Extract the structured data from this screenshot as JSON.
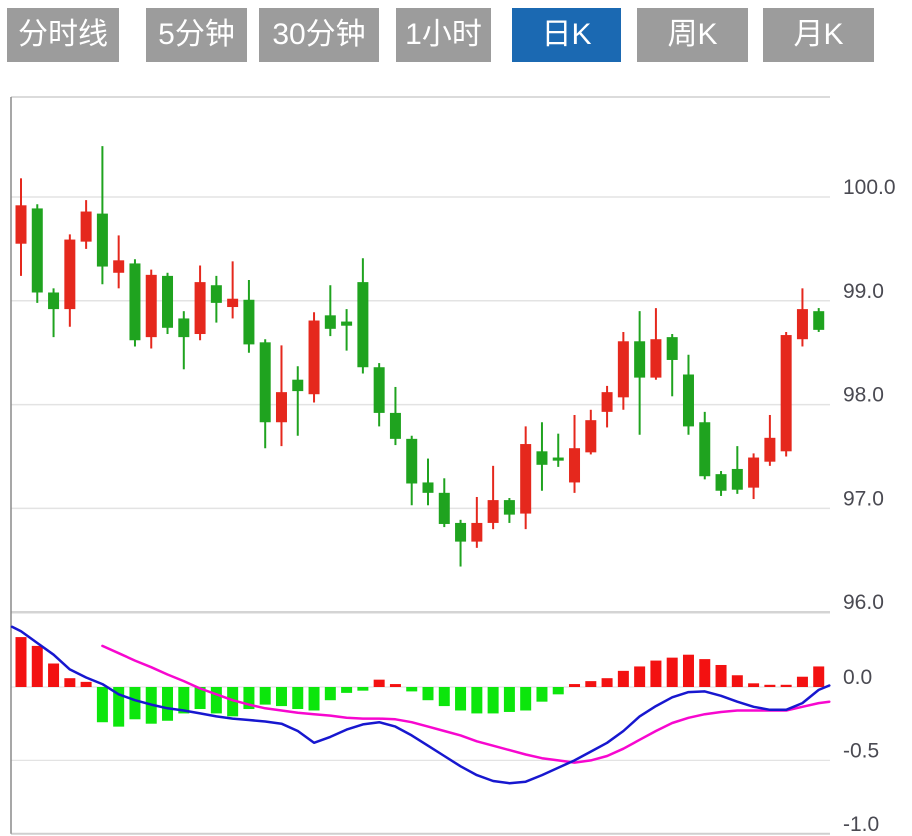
{
  "toolbar": {
    "tabs": [
      {
        "label": "分时线",
        "active": false
      },
      {
        "label": "5分钟",
        "active": false
      },
      {
        "label": "30分钟",
        "active": false
      },
      {
        "label": "1小时",
        "active": false
      },
      {
        "label": "日K",
        "active": true
      },
      {
        "label": "周K",
        "active": false
      },
      {
        "label": "月K",
        "active": false
      }
    ],
    "active_color": "#1b69b2",
    "inactive_color": "#9c9c9c"
  },
  "colors": {
    "candle_up": "#e5281d",
    "candle_down": "#1fa31f",
    "macd_up": "#f31111",
    "macd_down": "#0ce60c",
    "dif_line": "#1717cf",
    "dea_line": "#f707cf",
    "grid": "#e3e3e3",
    "panel_divider": "#d4d4d4",
    "frame": "#cfcfcf",
    "axis_line": "#8a8a8a",
    "tick_text": "#4a4a52"
  },
  "chart_data": {
    "type": "candlestick",
    "title": "",
    "panels": [
      "price",
      "macd"
    ],
    "legend": "none",
    "grid": true,
    "price_axis": {
      "side": "right",
      "range": [
        95.9,
        101.0
      ],
      "ticks": [
        {
          "label": "100.0",
          "value": 100.0
        },
        {
          "label": "99.0",
          "value": 99.0
        },
        {
          "label": "98.0",
          "value": 98.0
        },
        {
          "label": "97.0",
          "value": 97.0
        },
        {
          "label": "96.0",
          "value": 96.0
        }
      ]
    },
    "macd_axis": {
      "side": "right",
      "range": [
        -1.0,
        0.5
      ],
      "ticks": [
        {
          "label": "0.0",
          "value": 0.0
        },
        {
          "label": "-0.5",
          "value": -0.5
        },
        {
          "label": "-1.0",
          "value": -1.0
        }
      ]
    },
    "candles": {
      "note": "ohlc = [open, close, high, low]; close>open renders red (up), close<open renders green (down)",
      "ohlc": [
        [
          99.55,
          99.92,
          100.18,
          99.24
        ],
        [
          99.89,
          99.08,
          99.93,
          98.98
        ],
        [
          99.08,
          98.92,
          99.12,
          98.65
        ],
        [
          98.92,
          99.59,
          99.64,
          98.75
        ],
        [
          99.57,
          99.86,
          99.97,
          99.5
        ],
        [
          99.84,
          99.33,
          100.49,
          99.16
        ],
        [
          99.27,
          99.39,
          99.63,
          99.12
        ],
        [
          99.36,
          98.62,
          99.4,
          98.56
        ],
        [
          98.65,
          99.25,
          99.3,
          98.54
        ],
        [
          99.24,
          98.74,
          99.27,
          98.68
        ],
        [
          98.83,
          98.65,
          98.9,
          98.34
        ],
        [
          98.68,
          99.18,
          99.34,
          98.62
        ],
        [
          99.15,
          98.98,
          99.24,
          98.79
        ],
        [
          98.94,
          99.02,
          99.38,
          98.83
        ],
        [
          99.01,
          98.58,
          99.2,
          98.5
        ],
        [
          98.6,
          97.83,
          98.63,
          97.58
        ],
        [
          97.83,
          98.12,
          98.57,
          97.6
        ],
        [
          98.24,
          98.13,
          98.37,
          97.7
        ],
        [
          98.1,
          98.81,
          98.89,
          98.02
        ],
        [
          98.86,
          98.73,
          99.15,
          98.66
        ],
        [
          98.8,
          98.76,
          98.92,
          98.52
        ],
        [
          99.18,
          98.36,
          99.41,
          98.3
        ],
        [
          98.36,
          97.92,
          98.4,
          97.79
        ],
        [
          97.92,
          97.67,
          98.17,
          97.61
        ],
        [
          97.67,
          97.24,
          97.7,
          97.03
        ],
        [
          97.25,
          97.15,
          97.48,
          97.03
        ],
        [
          97.15,
          96.85,
          97.29,
          96.82
        ],
        [
          96.86,
          96.68,
          96.89,
          96.44
        ],
        [
          96.68,
          96.86,
          97.11,
          96.62
        ],
        [
          96.86,
          97.08,
          97.41,
          96.8
        ],
        [
          97.08,
          96.94,
          97.1,
          96.86
        ],
        [
          96.95,
          97.62,
          97.79,
          96.8
        ],
        [
          97.55,
          97.42,
          97.83,
          97.17
        ],
        [
          97.49,
          97.46,
          97.72,
          97.4
        ],
        [
          97.25,
          97.58,
          97.9,
          97.15
        ],
        [
          97.54,
          97.85,
          97.95,
          97.52
        ],
        [
          97.93,
          98.12,
          98.18,
          97.78
        ],
        [
          98.07,
          98.61,
          98.7,
          97.95
        ],
        [
          98.61,
          98.26,
          98.9,
          97.71
        ],
        [
          98.26,
          98.63,
          98.93,
          98.24
        ],
        [
          98.65,
          98.43,
          98.68,
          98.08
        ],
        [
          98.29,
          97.79,
          98.48,
          97.71
        ],
        [
          97.83,
          97.31,
          97.93,
          97.28
        ],
        [
          97.33,
          97.17,
          97.36,
          97.12
        ],
        [
          97.38,
          97.18,
          97.6,
          97.14
        ],
        [
          97.2,
          97.49,
          97.53,
          97.09
        ],
        [
          97.45,
          97.68,
          97.9,
          97.41
        ],
        [
          97.55,
          98.67,
          98.7,
          97.5
        ],
        [
          98.63,
          98.92,
          99.12,
          98.56
        ],
        [
          98.9,
          98.72,
          98.93,
          98.7
        ]
      ]
    },
    "macd": {
      "histogram": [
        0.34,
        0.28,
        0.16,
        0.06,
        0.035,
        -0.24,
        -0.27,
        -0.22,
        -0.25,
        -0.23,
        -0.18,
        -0.15,
        -0.18,
        -0.2,
        -0.15,
        -0.12,
        -0.13,
        -0.15,
        -0.16,
        -0.09,
        -0.04,
        -0.025,
        0.05,
        0.02,
        -0.03,
        -0.09,
        -0.13,
        -0.16,
        -0.18,
        -0.18,
        -0.17,
        -0.16,
        -0.1,
        -0.05,
        0.02,
        0.04,
        0.06,
        0.11,
        0.14,
        0.18,
        0.2,
        0.22,
        0.19,
        0.15,
        0.08,
        0.025,
        0.015,
        0.015,
        0.07,
        0.14
      ],
      "dif": [
        0.38,
        0.3,
        0.22,
        0.12,
        0.065,
        0.02,
        -0.05,
        -0.09,
        -0.12,
        -0.145,
        -0.16,
        -0.18,
        -0.2,
        -0.215,
        -0.225,
        -0.235,
        -0.25,
        -0.3,
        -0.38,
        -0.34,
        -0.29,
        -0.255,
        -0.24,
        -0.27,
        -0.33,
        -0.4,
        -0.47,
        -0.54,
        -0.6,
        -0.64,
        -0.655,
        -0.645,
        -0.6,
        -0.55,
        -0.5,
        -0.44,
        -0.38,
        -0.3,
        -0.2,
        -0.13,
        -0.07,
        -0.035,
        -0.03,
        -0.06,
        -0.1,
        -0.135,
        -0.155,
        -0.155,
        -0.11,
        -0.02
      ],
      "dea": [
        null,
        null,
        null,
        null,
        null,
        0.28,
        0.23,
        0.18,
        0.135,
        0.085,
        0.04,
        -0.01,
        -0.05,
        -0.09,
        -0.12,
        -0.145,
        -0.16,
        -0.175,
        -0.185,
        -0.195,
        -0.21,
        -0.215,
        -0.215,
        -0.22,
        -0.24,
        -0.27,
        -0.3,
        -0.33,
        -0.37,
        -0.4,
        -0.43,
        -0.46,
        -0.485,
        -0.5,
        -0.515,
        -0.5,
        -0.47,
        -0.42,
        -0.36,
        -0.3,
        -0.245,
        -0.21,
        -0.185,
        -0.17,
        -0.16,
        -0.16,
        -0.16,
        -0.16,
        -0.135,
        -0.11
      ],
      "dif_lead": [
        -0.55,
        0.41
      ],
      "dif_tail": [
        49.65,
        0.01
      ],
      "dea_tail": [
        49.65,
        -0.1
      ]
    }
  }
}
